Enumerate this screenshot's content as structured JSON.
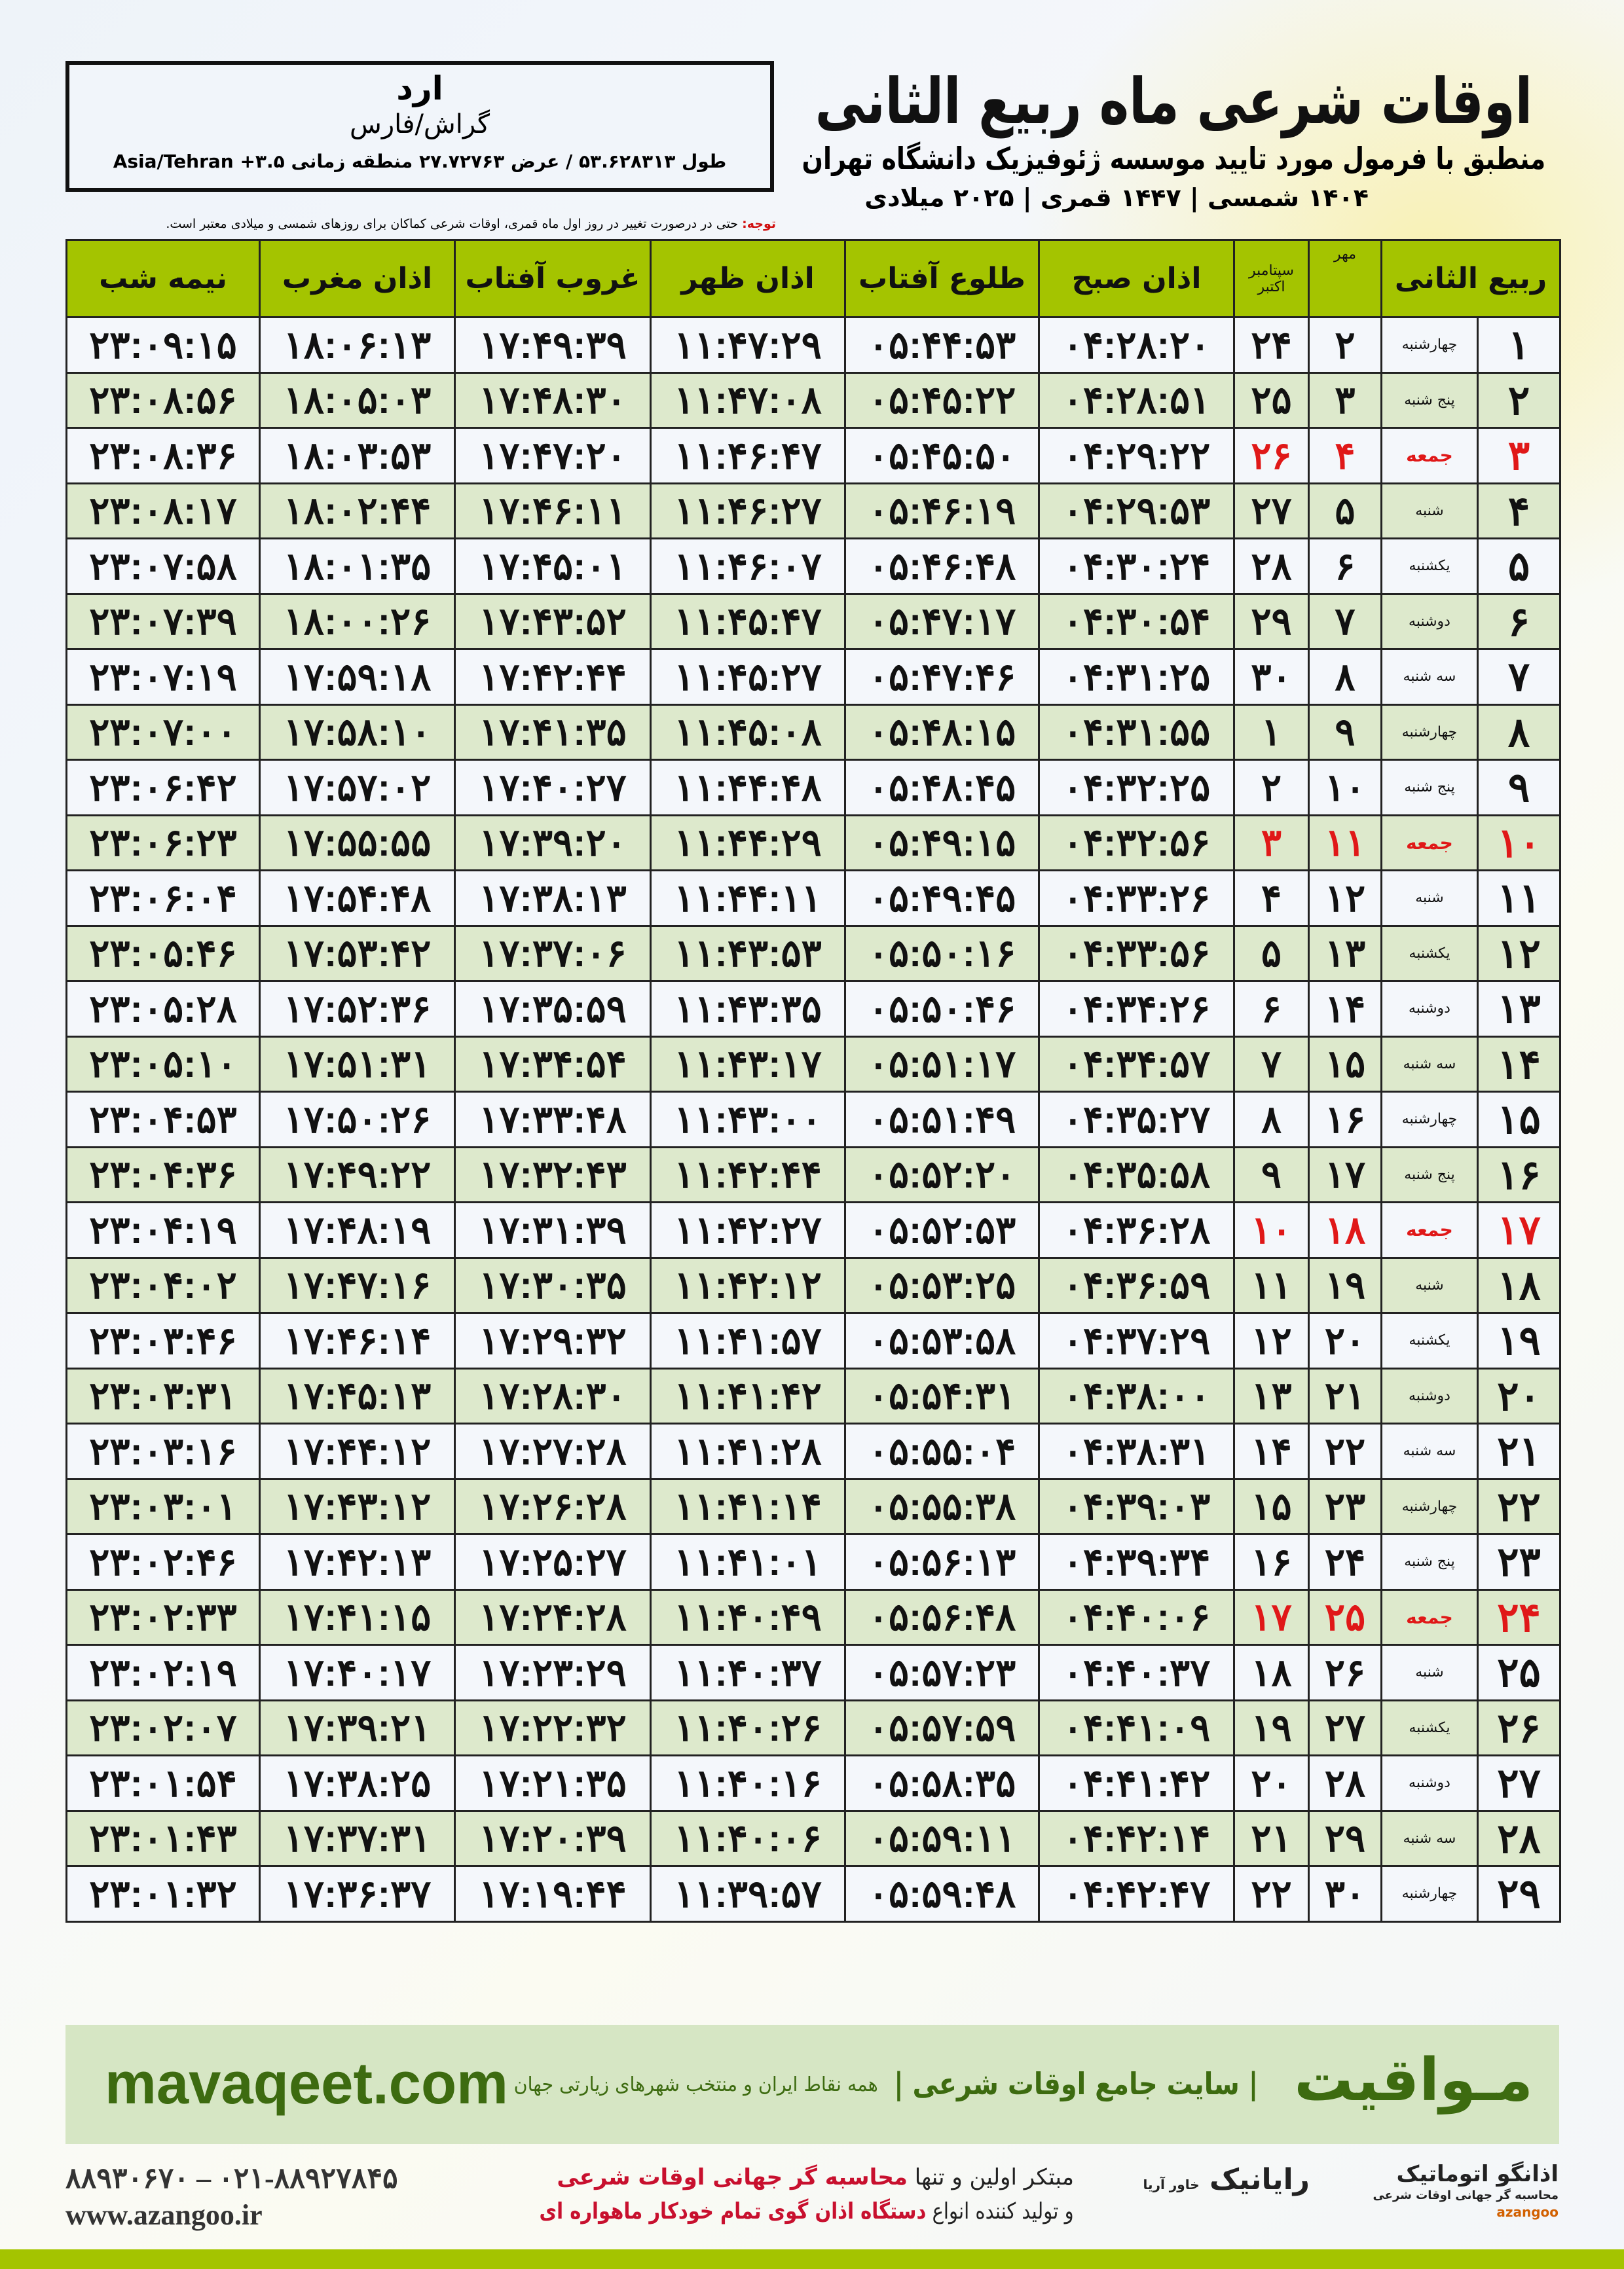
{
  "location": {
    "city": "ارد",
    "province": "گراش/فارس",
    "coords": "طول ۵۳.۶۲۸۳۱۳ / عرض ۲۷.۷۲۷۶۳ منطقه زمانی ۳.۵+ Asia/Tehran"
  },
  "header": {
    "title": "اوقات شرعی ماه ربیع الثانی",
    "subtitle": "منطبق با فرمول مورد تایید موسسه ژئوفیزیک دانشگاه تهران",
    "years": "۱۴۰۴ شمسی | ۱۴۴۷ قمری | ۲۰۲۵ میلادی"
  },
  "note": {
    "label": "توجه:",
    "text": " حتی در درصورت تغییر در روز اول ماه قمری، اوقات شرعی کماکان برای روزهای شمسی و میلادی معتبر است."
  },
  "table": {
    "columns": {
      "month": "ربیع الثانی",
      "mehr": "مهر",
      "greg": "سپتامبر اکتبر",
      "fajr": "اذان صبح",
      "sunrise": "طلوع آفتاب",
      "dhuhr": "اذان ظهر",
      "sunset": "غروب آفتاب",
      "maghrib": "اذان مغرب",
      "midnight": "نیمه شب"
    },
    "friday_color": "#e01818",
    "rows": [
      [
        "۱",
        "چهارشنبه",
        "۲",
        "۲۴",
        "۰۴:۲۸:۲۰",
        "۰۵:۴۴:۵۳",
        "۱۱:۴۷:۲۹",
        "۱۷:۴۹:۳۹",
        "۱۸:۰۶:۱۳",
        "۲۳:۰۹:۱۵"
      ],
      [
        "۲",
        "پنج شنبه",
        "۳",
        "۲۵",
        "۰۴:۲۸:۵۱",
        "۰۵:۴۵:۲۲",
        "۱۱:۴۷:۰۸",
        "۱۷:۴۸:۳۰",
        "۱۸:۰۵:۰۳",
        "۲۳:۰۸:۵۶"
      ],
      [
        "۳",
        "جمعه",
        "۴",
        "۲۶",
        "۰۴:۲۹:۲۲",
        "۰۵:۴۵:۵۰",
        "۱۱:۴۶:۴۷",
        "۱۷:۴۷:۲۰",
        "۱۸:۰۳:۵۳",
        "۲۳:۰۸:۳۶"
      ],
      [
        "۴",
        "شنبه",
        "۵",
        "۲۷",
        "۰۴:۲۹:۵۳",
        "۰۵:۴۶:۱۹",
        "۱۱:۴۶:۲۷",
        "۱۷:۴۶:۱۱",
        "۱۸:۰۲:۴۴",
        "۲۳:۰۸:۱۷"
      ],
      [
        "۵",
        "یکشنبه",
        "۶",
        "۲۸",
        "۰۴:۳۰:۲۴",
        "۰۵:۴۶:۴۸",
        "۱۱:۴۶:۰۷",
        "۱۷:۴۵:۰۱",
        "۱۸:۰۱:۳۵",
        "۲۳:۰۷:۵۸"
      ],
      [
        "۶",
        "دوشنبه",
        "۷",
        "۲۹",
        "۰۴:۳۰:۵۴",
        "۰۵:۴۷:۱۷",
        "۱۱:۴۵:۴۷",
        "۱۷:۴۳:۵۲",
        "۱۸:۰۰:۲۶",
        "۲۳:۰۷:۳۹"
      ],
      [
        "۷",
        "سه شنبه",
        "۸",
        "۳۰",
        "۰۴:۳۱:۲۵",
        "۰۵:۴۷:۴۶",
        "۱۱:۴۵:۲۷",
        "۱۷:۴۲:۴۴",
        "۱۷:۵۹:۱۸",
        "۲۳:۰۷:۱۹"
      ],
      [
        "۸",
        "چهارشنبه",
        "۹",
        "۱",
        "۰۴:۳۱:۵۵",
        "۰۵:۴۸:۱۵",
        "۱۱:۴۵:۰۸",
        "۱۷:۴۱:۳۵",
        "۱۷:۵۸:۱۰",
        "۲۳:۰۷:۰۰"
      ],
      [
        "۹",
        "پنج شنبه",
        "۱۰",
        "۲",
        "۰۴:۳۲:۲۵",
        "۰۵:۴۸:۴۵",
        "۱۱:۴۴:۴۸",
        "۱۷:۴۰:۲۷",
        "۱۷:۵۷:۰۲",
        "۲۳:۰۶:۴۲"
      ],
      [
        "۱۰",
        "جمعه",
        "۱۱",
        "۳",
        "۰۴:۳۲:۵۶",
        "۰۵:۴۹:۱۵",
        "۱۱:۴۴:۲۹",
        "۱۷:۳۹:۲۰",
        "۱۷:۵۵:۵۵",
        "۲۳:۰۶:۲۳"
      ],
      [
        "۱۱",
        "شنبه",
        "۱۲",
        "۴",
        "۰۴:۳۳:۲۶",
        "۰۵:۴۹:۴۵",
        "۱۱:۴۴:۱۱",
        "۱۷:۳۸:۱۳",
        "۱۷:۵۴:۴۸",
        "۲۳:۰۶:۰۴"
      ],
      [
        "۱۲",
        "یکشنبه",
        "۱۳",
        "۵",
        "۰۴:۳۳:۵۶",
        "۰۵:۵۰:۱۶",
        "۱۱:۴۳:۵۳",
        "۱۷:۳۷:۰۶",
        "۱۷:۵۳:۴۲",
        "۲۳:۰۵:۴۶"
      ],
      [
        "۱۳",
        "دوشنبه",
        "۱۴",
        "۶",
        "۰۴:۳۴:۲۶",
        "۰۵:۵۰:۴۶",
        "۱۱:۴۳:۳۵",
        "۱۷:۳۵:۵۹",
        "۱۷:۵۲:۳۶",
        "۲۳:۰۵:۲۸"
      ],
      [
        "۱۴",
        "سه شنبه",
        "۱۵",
        "۷",
        "۰۴:۳۴:۵۷",
        "۰۵:۵۱:۱۷",
        "۱۱:۴۳:۱۷",
        "۱۷:۳۴:۵۴",
        "۱۷:۵۱:۳۱",
        "۲۳:۰۵:۱۰"
      ],
      [
        "۱۵",
        "چهارشنبه",
        "۱۶",
        "۸",
        "۰۴:۳۵:۲۷",
        "۰۵:۵۱:۴۹",
        "۱۱:۴۳:۰۰",
        "۱۷:۳۳:۴۸",
        "۱۷:۵۰:۲۶",
        "۲۳:۰۴:۵۳"
      ],
      [
        "۱۶",
        "پنج شنبه",
        "۱۷",
        "۹",
        "۰۴:۳۵:۵۸",
        "۰۵:۵۲:۲۰",
        "۱۱:۴۲:۴۴",
        "۱۷:۳۲:۴۳",
        "۱۷:۴۹:۲۲",
        "۲۳:۰۴:۳۶"
      ],
      [
        "۱۷",
        "جمعه",
        "۱۸",
        "۱۰",
        "۰۴:۳۶:۲۸",
        "۰۵:۵۲:۵۳",
        "۱۱:۴۲:۲۷",
        "۱۷:۳۱:۳۹",
        "۱۷:۴۸:۱۹",
        "۲۳:۰۴:۱۹"
      ],
      [
        "۱۸",
        "شنبه",
        "۱۹",
        "۱۱",
        "۰۴:۳۶:۵۹",
        "۰۵:۵۳:۲۵",
        "۱۱:۴۲:۱۲",
        "۱۷:۳۰:۳۵",
        "۱۷:۴۷:۱۶",
        "۲۳:۰۴:۰۲"
      ],
      [
        "۱۹",
        "یکشنبه",
        "۲۰",
        "۱۲",
        "۰۴:۳۷:۲۹",
        "۰۵:۵۳:۵۸",
        "۱۱:۴۱:۵۷",
        "۱۷:۲۹:۳۲",
        "۱۷:۴۶:۱۴",
        "۲۳:۰۳:۴۶"
      ],
      [
        "۲۰",
        "دوشنبه",
        "۲۱",
        "۱۳",
        "۰۴:۳۸:۰۰",
        "۰۵:۵۴:۳۱",
        "۱۱:۴۱:۴۲",
        "۱۷:۲۸:۳۰",
        "۱۷:۴۵:۱۳",
        "۲۳:۰۳:۳۱"
      ],
      [
        "۲۱",
        "سه شنبه",
        "۲۲",
        "۱۴",
        "۰۴:۳۸:۳۱",
        "۰۵:۵۵:۰۴",
        "۱۱:۴۱:۲۸",
        "۱۷:۲۷:۲۸",
        "۱۷:۴۴:۱۲",
        "۲۳:۰۳:۱۶"
      ],
      [
        "۲۲",
        "چهارشنبه",
        "۲۳",
        "۱۵",
        "۰۴:۳۹:۰۳",
        "۰۵:۵۵:۳۸",
        "۱۱:۴۱:۱۴",
        "۱۷:۲۶:۲۸",
        "۱۷:۴۳:۱۲",
        "۲۳:۰۳:۰۱"
      ],
      [
        "۲۳",
        "پنج شنبه",
        "۲۴",
        "۱۶",
        "۰۴:۳۹:۳۴",
        "۰۵:۵۶:۱۳",
        "۱۱:۴۱:۰۱",
        "۱۷:۲۵:۲۷",
        "۱۷:۴۲:۱۳",
        "۲۳:۰۲:۴۶"
      ],
      [
        "۲۴",
        "جمعه",
        "۲۵",
        "۱۷",
        "۰۴:۴۰:۰۶",
        "۰۵:۵۶:۴۸",
        "۱۱:۴۰:۴۹",
        "۱۷:۲۴:۲۸",
        "۱۷:۴۱:۱۵",
        "۲۳:۰۲:۳۳"
      ],
      [
        "۲۵",
        "شنبه",
        "۲۶",
        "۱۸",
        "۰۴:۴۰:۳۷",
        "۰۵:۵۷:۲۳",
        "۱۱:۴۰:۳۷",
        "۱۷:۲۳:۲۹",
        "۱۷:۴۰:۱۷",
        "۲۳:۰۲:۱۹"
      ],
      [
        "۲۶",
        "یکشنبه",
        "۲۷",
        "۱۹",
        "۰۴:۴۱:۰۹",
        "۰۵:۵۷:۵۹",
        "۱۱:۴۰:۲۶",
        "۱۷:۲۲:۳۲",
        "۱۷:۳۹:۲۱",
        "۲۳:۰۲:۰۷"
      ],
      [
        "۲۷",
        "دوشنبه",
        "۲۸",
        "۲۰",
        "۰۴:۴۱:۴۲",
        "۰۵:۵۸:۳۵",
        "۱۱:۴۰:۱۶",
        "۱۷:۲۱:۳۵",
        "۱۷:۳۸:۲۵",
        "۲۳:۰۱:۵۴"
      ],
      [
        "۲۸",
        "سه شنبه",
        "۲۹",
        "۲۱",
        "۰۴:۴۲:۱۴",
        "۰۵:۵۹:۱۱",
        "۱۱:۴۰:۰۶",
        "۱۷:۲۰:۳۹",
        "۱۷:۳۷:۳۱",
        "۲۳:۰۱:۴۳"
      ],
      [
        "۲۹",
        "چهارشنبه",
        "۳۰",
        "۲۲",
        "۰۴:۴۲:۴۷",
        "۰۵:۵۹:۴۸",
        "۱۱:۳۹:۵۷",
        "۱۷:۱۹:۴۴",
        "۱۷:۳۶:۳۷",
        "۲۳:۰۱:۳۲"
      ]
    ]
  },
  "banner": {
    "brand": "مـواقیت",
    "tagline": "| سایت جامع اوقات شرعی |",
    "tagline2": "همه نقاط ایران و منتخب شهرهای زیارتی جهان",
    "site": "mavaqeet.com"
  },
  "footer": {
    "phone": "۰۲۱-۸۸۹۲۷۸۴۵ – ۸۸۹۳۰۶۷۰",
    "web": "www.azangoo.ir",
    "promo1a": "مبتکر اولین و تنها ",
    "promo1b": "محاسبه گر جهانی اوقات شرعی",
    "promo2a": "و تولید کننده انواع ",
    "promo2b": "دستگاه اذان گوی تمام خودکار ماهواره ای",
    "logo2": "رایانیک",
    "logo2sub": "خاور آریا",
    "logo1": "اذانگو اتوماتیک",
    "logo1sub": "محاسبه گر جهانی اوقات شرعی",
    "logo1en": "azangoo"
  }
}
